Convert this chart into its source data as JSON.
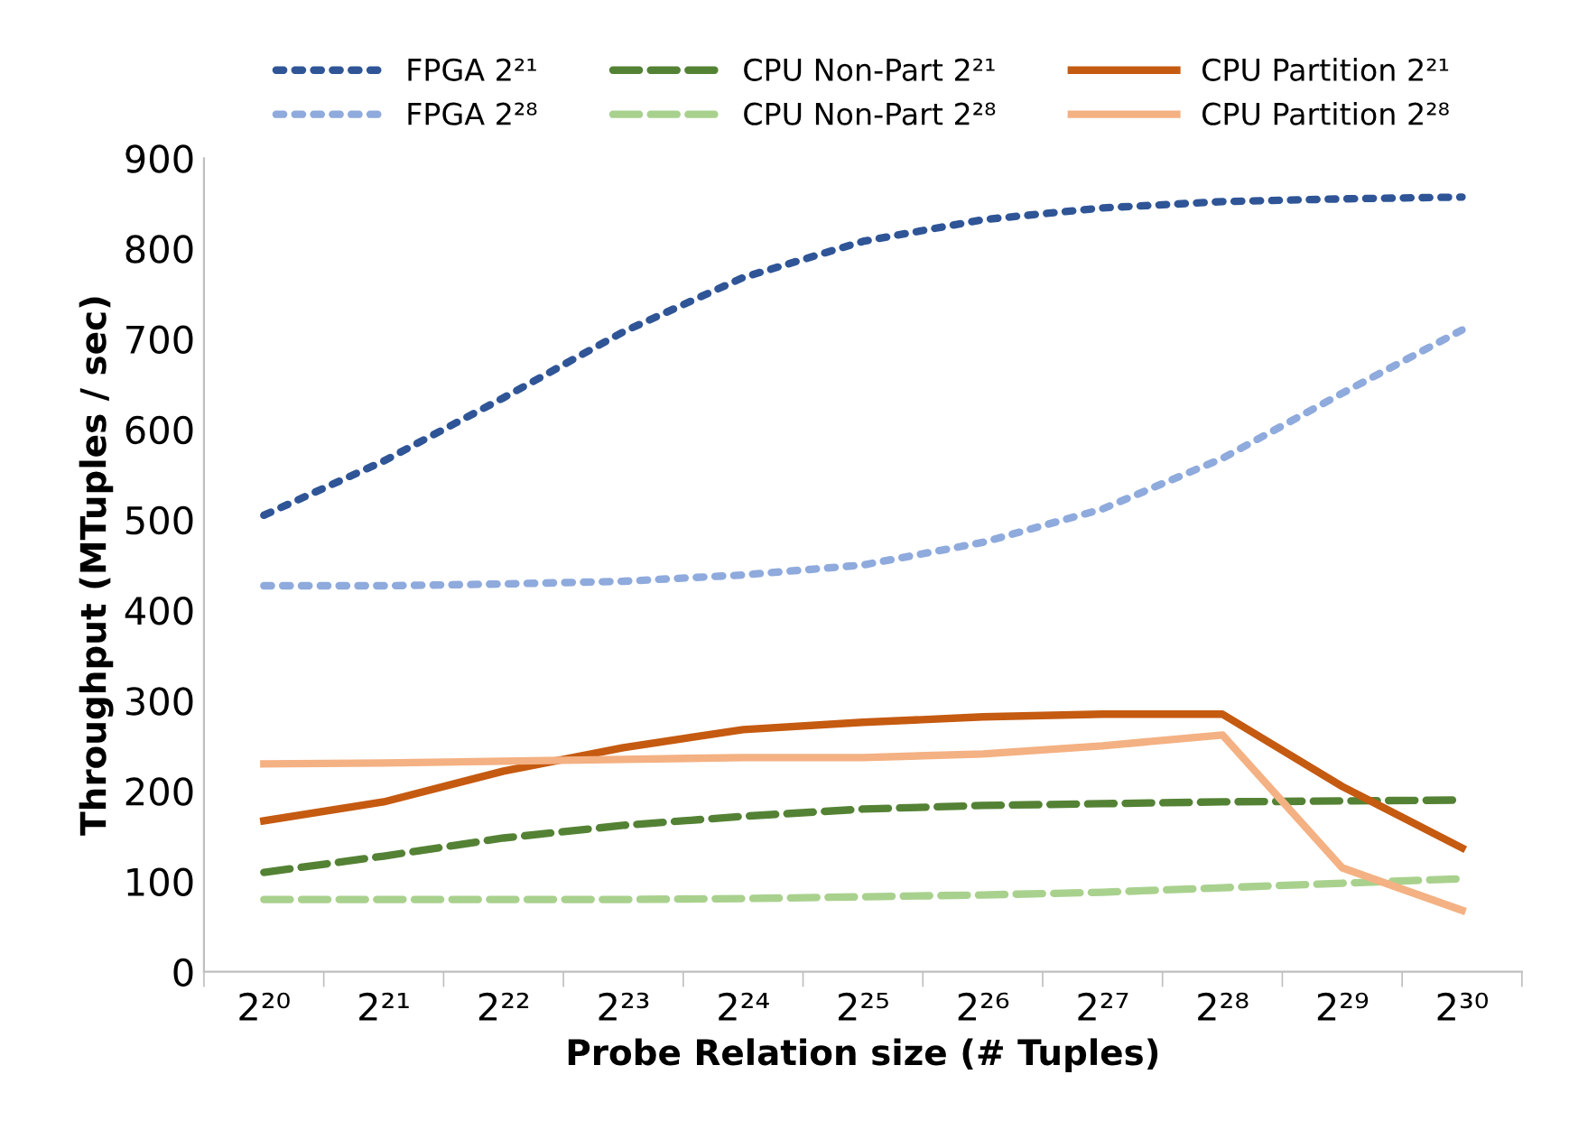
{
  "chart_data": {
    "type": "line",
    "xlabel": "Probe Relation size (# Tuples)",
    "ylabel": "Throughput (MTuples / sec)",
    "categories": [
      "2²⁰",
      "2²¹",
      "2²²",
      "2²³",
      "2²⁴",
      "2²⁵",
      "2²⁶",
      "2²⁷",
      "2²⁸",
      "2²⁹",
      "2³⁰"
    ],
    "ylim": [
      0,
      900
    ],
    "yticks": [
      0,
      100,
      200,
      300,
      400,
      500,
      600,
      700,
      800,
      900
    ],
    "grid": false,
    "legend": "top",
    "marker": "none",
    "series": [
      {
        "name": "FPGA 2²¹",
        "color": "#2f5597",
        "line_style": "dotted",
        "values": [
          505,
          565,
          635,
          708,
          768,
          808,
          832,
          845,
          852,
          855,
          857
        ]
      },
      {
        "name": "FPGA 2²⁸",
        "color": "#8faadc",
        "line_style": "dotted",
        "values": [
          427,
          427,
          429,
          432,
          439,
          450,
          475,
          512,
          568,
          640,
          710
        ]
      },
      {
        "name": "CPU Non-Part 2²¹",
        "color": "#548235",
        "line_style": "dashed",
        "values": [
          110,
          128,
          148,
          162,
          172,
          180,
          184,
          186,
          188,
          189,
          190
        ]
      },
      {
        "name": "CPU Non-Part 2²⁸",
        "color": "#a9d18e",
        "line_style": "dashed",
        "values": [
          80,
          80,
          80,
          80,
          81,
          83,
          85,
          88,
          93,
          98,
          103
        ]
      },
      {
        "name": "CPU Partition 2²¹",
        "color": "#c55a11",
        "line_style": "solid",
        "values": [
          167,
          188,
          222,
          248,
          268,
          276,
          282,
          285,
          285,
          205,
          137
        ]
      },
      {
        "name": "CPU Partition 2²⁸",
        "color": "#f4b183",
        "line_style": "solid",
        "values": [
          230,
          231,
          233,
          235,
          237,
          237,
          241,
          250,
          262,
          115,
          68
        ]
      }
    ]
  }
}
